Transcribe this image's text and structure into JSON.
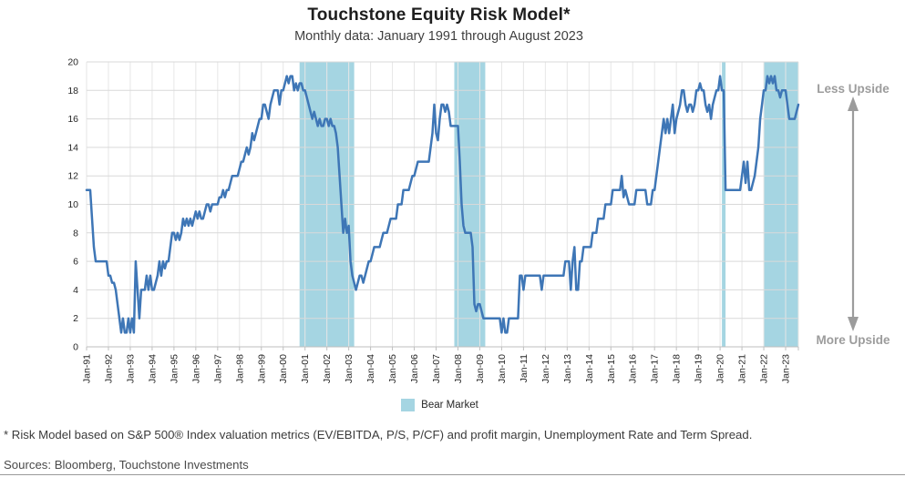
{
  "header": {
    "title": "Touchstone Equity Risk Model*",
    "subtitle": "Monthly data: January 1991 through August 2023"
  },
  "annotations": {
    "less_upside": "Less Upside",
    "more_upside": "More Upside"
  },
  "legend": {
    "bear_market_label": "Bear Market"
  },
  "footnotes": {
    "risk_model": "* Risk Model based on S&P 500® Index valuation metrics (EV/EBITDA, P/S, P/CF) and profit margin, Unemployment Rate and Term Spread.",
    "sources": "Sources:  Bloomberg, Touchstone Investments"
  },
  "colors": {
    "line": "#3E76B6",
    "bear_band": "#A5D5E2",
    "grid_h": "#D9D9D9",
    "grid_v": "#E6E6E6",
    "axis": "#BFBFBF",
    "upside": "#9C9C9C",
    "divider": "#9A9A9A"
  },
  "chart_data": {
    "type": "line",
    "title": "Touchstone Equity Risk Model*",
    "subtitle": "Monthly data: January 1991 through August 2023",
    "xlabel": "",
    "ylabel": "",
    "ylim": [
      0,
      20
    ],
    "y_ticks": [
      0,
      2,
      4,
      6,
      8,
      10,
      12,
      14,
      16,
      18,
      20
    ],
    "grid": true,
    "start_month": "1991-01",
    "end_month": "2023-08",
    "x_tick_labels": [
      "Jan-91",
      "Jan-92",
      "Jan-93",
      "Jan-94",
      "Jan-95",
      "Jan-96",
      "Jan-97",
      "Jan-98",
      "Jan-99",
      "Jan-00",
      "Jan-01",
      "Jan-02",
      "Jan-03",
      "Jan-04",
      "Jan-05",
      "Jan-06",
      "Jan-07",
      "Jan-08",
      "Jan-09",
      "Jan-10",
      "Jan-11",
      "Jan-12",
      "Jan-13",
      "Jan-14",
      "Jan-15",
      "Jan-16",
      "Jan-17",
      "Jan-18",
      "Jan-19",
      "Jan-20",
      "Jan-21",
      "Jan-22",
      "Jan-23"
    ],
    "bear_markets": [
      {
        "from": "2000-10",
        "to": "2003-04"
      },
      {
        "from": "2007-11",
        "to": "2009-04"
      },
      {
        "from": "2020-02",
        "to": "2020-04"
      },
      {
        "from": "2022-01",
        "to": "2023-08"
      }
    ],
    "series": [
      {
        "name": "Equity Risk Model",
        "values": [
          11,
          11,
          11,
          9,
          7,
          6,
          6,
          6,
          6,
          6,
          6,
          6,
          5,
          5,
          4.5,
          4.5,
          4,
          3,
          2,
          1,
          2,
          1,
          1,
          2,
          1,
          2,
          1,
          6,
          4,
          2,
          4,
          4,
          4,
          5,
          4,
          5,
          4,
          4,
          4.5,
          5,
          6,
          5,
          6,
          5.5,
          6,
          6,
          7,
          8,
          8,
          7.5,
          8,
          7.5,
          8,
          9,
          8.5,
          9,
          8.5,
          9,
          8.5,
          9,
          9.5,
          9,
          9.5,
          9,
          9,
          9.5,
          10,
          10,
          9.5,
          10,
          10,
          10,
          10,
          10.5,
          10.5,
          11,
          10.5,
          11,
          11,
          11.5,
          12,
          12,
          12,
          12,
          12.5,
          13,
          13,
          13.5,
          14,
          13.5,
          14,
          15,
          14.5,
          15,
          15.5,
          16,
          16,
          17,
          17,
          16.5,
          16,
          17,
          17.5,
          18,
          18,
          18,
          17,
          18,
          18,
          18.5,
          19,
          18.5,
          19,
          19,
          18,
          18.5,
          18,
          18.5,
          18.5,
          18,
          18,
          17.5,
          17,
          16.5,
          16,
          16.5,
          16,
          15.5,
          16,
          15.5,
          15.5,
          16,
          16,
          15.5,
          16,
          15.5,
          15.5,
          15,
          14,
          12,
          10,
          8,
          9,
          8,
          8.5,
          6,
          5,
          4.5,
          4,
          4.5,
          5,
          5,
          4.5,
          5,
          5.5,
          6,
          6,
          6.5,
          7,
          7,
          7,
          7,
          7.5,
          8,
          8,
          8,
          8.5,
          9,
          9,
          9,
          9,
          10,
          10,
          10,
          11,
          11,
          11,
          11,
          11.5,
          12,
          12,
          12.5,
          13,
          13,
          13,
          13,
          13,
          13,
          13,
          14,
          15,
          17,
          15,
          14.5,
          16,
          17,
          17,
          16.5,
          17,
          16.5,
          15.5,
          15.5,
          15.5,
          15.5,
          15.5,
          13,
          10,
          8.5,
          8,
          8,
          8,
          8,
          7,
          3,
          2.5,
          3,
          3,
          2.5,
          2,
          2,
          2,
          2,
          2,
          2,
          2,
          2,
          2,
          2,
          1,
          2,
          1,
          1,
          2,
          2,
          2,
          2,
          2,
          2,
          5,
          5,
          4,
          5,
          5,
          5,
          5,
          5,
          5,
          5,
          5,
          5,
          4,
          5,
          5,
          5,
          5,
          5,
          5,
          5,
          5,
          5,
          5,
          5,
          5,
          6,
          6,
          6,
          4,
          6,
          7,
          4,
          4,
          6,
          6,
          7,
          7,
          7,
          7,
          7,
          8,
          8,
          8,
          9,
          9,
          9,
          9,
          10,
          10,
          10,
          10,
          11,
          11,
          11,
          11,
          11,
          12,
          10.5,
          11,
          10.5,
          10,
          10,
          10,
          10,
          11,
          11,
          11,
          11,
          11,
          11,
          10,
          10,
          10,
          11,
          11,
          12,
          13,
          14,
          15,
          16,
          15,
          16,
          15,
          16,
          17,
          15,
          16,
          16.5,
          17,
          18,
          18,
          17,
          16.5,
          17,
          17,
          16.5,
          17,
          18,
          18,
          18.5,
          18,
          18,
          17,
          16.5,
          17,
          16,
          17,
          17.5,
          18,
          18,
          19,
          18,
          18,
          11,
          11,
          11,
          11,
          11,
          11,
          11,
          11,
          11,
          12,
          13,
          11.5,
          13,
          11,
          11,
          11.5,
          12,
          13,
          14,
          16,
          17,
          18,
          18,
          19,
          18.5,
          19,
          18.5,
          19,
          18,
          18,
          17.5,
          18,
          18,
          18,
          17,
          16,
          16,
          16,
          16,
          16.5,
          17
        ]
      }
    ]
  }
}
